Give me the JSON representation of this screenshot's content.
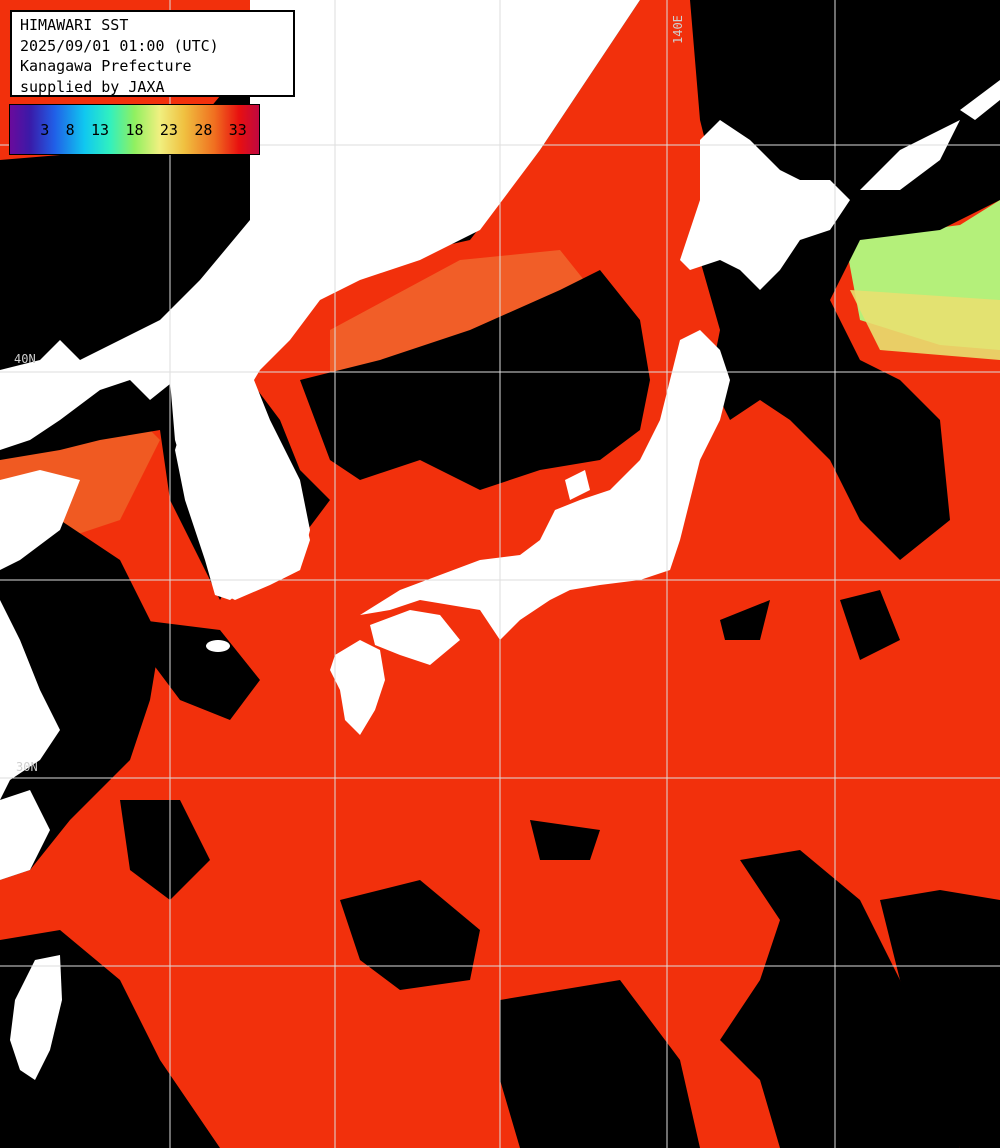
{
  "header": {
    "title": "HIMAWARI SST",
    "datetime": "2025/09/01 01:00 (UTC)",
    "region": "Kanagawa Prefecture",
    "credit": "supplied by JAXA"
  },
  "color_scale": {
    "ticks": [
      "3",
      "8",
      "13",
      "18",
      "23",
      "28",
      "33"
    ],
    "colors": [
      "#6a0a9c",
      "#2060e8",
      "#10c8f0",
      "#90f060",
      "#f0f080",
      "#f07020",
      "#c00840"
    ]
  },
  "grid_labels": {
    "lon_140": "140E",
    "lat_40": "40N",
    "lat_30": "30N"
  },
  "colors": {
    "sea_warm": "#f2300c",
    "sea_cool": "#f08040",
    "sea_cold": "#b0f070",
    "land": "#ffffff",
    "cloud": "#000000",
    "grid": "#dddddd"
  }
}
